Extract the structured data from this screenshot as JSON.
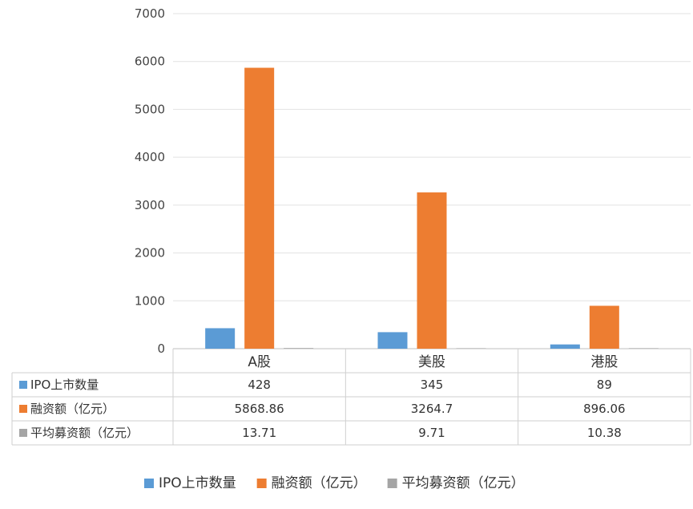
{
  "chart_data": {
    "type": "bar",
    "categories": [
      "A股",
      "美股",
      "港股"
    ],
    "series": [
      {
        "name": "IPO上市数量",
        "values": [
          428,
          345,
          89
        ],
        "labels": [
          "428",
          "345",
          "89"
        ],
        "color": "#5b9bd5"
      },
      {
        "name": "融资额（亿元）",
        "values": [
          5868.86,
          3264.7,
          896.06
        ],
        "labels": [
          "5868.86",
          "3264.7",
          "896.06"
        ],
        "color": "#ed7d31"
      },
      {
        "name": "平均募资额（亿元）",
        "values": [
          13.71,
          9.71,
          10.38
        ],
        "labels": [
          "13.71",
          "9.71",
          "10.38"
        ],
        "color": "#a5a5a5"
      }
    ],
    "y_ticks": [
      "0",
      "1000",
      "2000",
      "3000",
      "4000",
      "5000",
      "6000",
      "7000"
    ],
    "ylim": [
      0,
      7000
    ],
    "grid": true,
    "data_table": true,
    "legend": "bottom"
  }
}
